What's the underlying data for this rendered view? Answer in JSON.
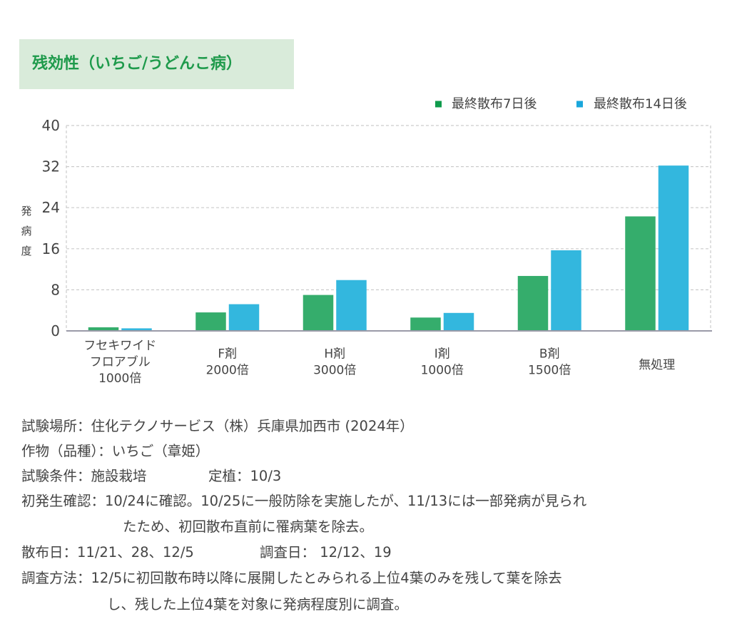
{
  "title": "残効性（いちご/うどんこ病）",
  "colors": {
    "title_text": "#1e9a4b",
    "title_bg": "#d9ebda",
    "series_7": "#35ad6c",
    "series_14": "#33b7de",
    "legend_7": "#0f9b4c",
    "legend_14": "#1aa7dc",
    "text": "#444444",
    "grid": "#cccccc",
    "axis": "#9a9aa8"
  },
  "chart_data": {
    "type": "bar",
    "title": "残効性（いちご/うどんこ病）",
    "xlabel": "",
    "ylabel": "発病度",
    "ylabel_chars": [
      "発",
      "病",
      "度"
    ],
    "ylim": [
      0,
      40
    ],
    "yticks": [
      0,
      8,
      16,
      24,
      32,
      40
    ],
    "ytick_labels": [
      "0",
      "8",
      "16",
      "24",
      "32",
      "40"
    ],
    "grid": true,
    "legend_position": "top-right",
    "categories": [
      "フセキワイドフロアブル1000倍",
      "F剤2000倍",
      "H剤3000倍",
      "I剤1000倍",
      "B剤1500倍",
      "無処理"
    ],
    "category_lines": [
      [
        "フセキワイド",
        "フロアブル",
        "1000倍"
      ],
      [
        "F剤",
        "2000倍"
      ],
      [
        "H剤",
        "3000倍"
      ],
      [
        "I剤",
        "1000倍"
      ],
      [
        "B剤",
        "1500倍"
      ],
      [
        "無処理"
      ]
    ],
    "series": [
      {
        "name": "最終散布7日後",
        "values": [
          0.7,
          3.6,
          7.0,
          2.6,
          10.7,
          22.3
        ]
      },
      {
        "name": "最終散布14日後",
        "values": [
          0.5,
          5.2,
          9.9,
          3.5,
          15.7,
          32.2
        ]
      }
    ]
  },
  "notes": {
    "location": "試験場所：住化テクノサービス（株）兵庫県加西市 (2024年）",
    "crop": "作物（品種）：いちご（章姫）",
    "conditions": "試験条件：施設栽培",
    "planting": "定植：10/3",
    "first_occurrence": "初発生確認：10/24に確認。10/25に一般防除を実施したが、11/13には一部発病が見られ",
    "first_occurrence_cont": "たため、初回散布直前に罹病葉を除去。",
    "spray_dates": "散布日：11/21、28、12/5",
    "survey_dates": "調査日： 12/12、19",
    "method": "調査方法：12/5に初回散布時以降に展開したとみられる上位4葉のみを残して葉を除去",
    "method_cont": "し、残した上位4葉を対象に発病程度別に調査。"
  }
}
